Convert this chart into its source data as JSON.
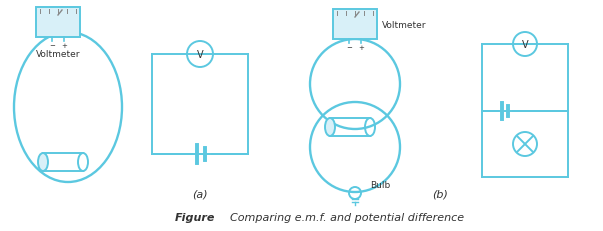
{
  "figure_label": "Figure",
  "figure_caption": "Comparing e.m.f. and potential difference",
  "label_a": "(a)",
  "label_b": "(b)",
  "cc": "#5bc8e0",
  "tc": "#333333",
  "bg": "#ffffff",
  "fig_width": 6.03,
  "fig_height": 2.32,
  "dpi": 100
}
